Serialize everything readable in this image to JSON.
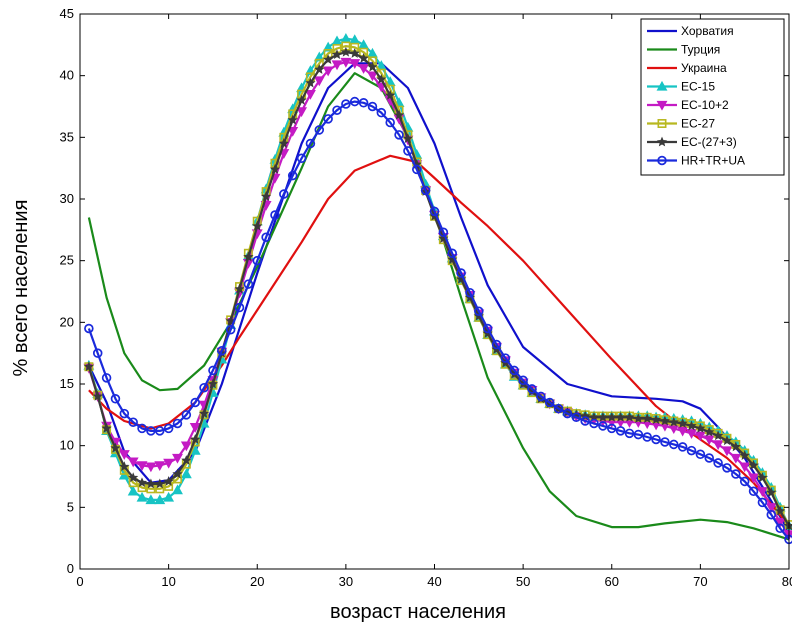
{
  "chart_data": {
    "type": "line",
    "title": "",
    "xlabel": "возраст населения",
    "ylabel": "% всего населения",
    "xlim": [
      0,
      80
    ],
    "ylim": [
      0,
      45
    ],
    "xticks": [
      0,
      10,
      20,
      30,
      40,
      50,
      60,
      70,
      80
    ],
    "yticks": [
      0,
      5,
      10,
      15,
      20,
      25,
      30,
      35,
      40,
      45
    ],
    "grid": false,
    "legend_position": "top-right",
    "series": [
      {
        "name": "Хорватия",
        "color": "#1010cc",
        "marker": "none",
        "x": [
          1,
          3,
          5,
          8,
          10,
          13,
          16,
          20,
          25,
          28,
          31,
          34,
          37,
          40,
          43,
          46,
          50,
          55,
          60,
          65,
          68,
          70,
          72,
          75,
          78,
          80
        ],
        "y": [
          16.5,
          13.5,
          9.5,
          7.0,
          7.2,
          9.5,
          15.0,
          24.0,
          34.5,
          39.0,
          41.0,
          41.0,
          39.0,
          34.5,
          28.5,
          23.0,
          18.0,
          15.0,
          14.0,
          13.8,
          13.6,
          13.0,
          11.5,
          9.0,
          5.5,
          3.0
        ]
      },
      {
        "name": "Турция",
        "color": "#1a8a1a",
        "marker": "none",
        "x": [
          1,
          3,
          5,
          7,
          9,
          11,
          14,
          17,
          20,
          25,
          28,
          31,
          34,
          37,
          40,
          43,
          46,
          50,
          53,
          56,
          60,
          63,
          66,
          70,
          73,
          76,
          80
        ],
        "y": [
          28.5,
          22.0,
          17.5,
          15.3,
          14.5,
          14.6,
          16.5,
          20.0,
          24.5,
          32.5,
          37.5,
          40.2,
          39.0,
          35.0,
          29.0,
          22.0,
          15.5,
          9.8,
          6.3,
          4.3,
          3.4,
          3.4,
          3.7,
          4.0,
          3.8,
          3.3,
          2.4
        ]
      },
      {
        "name": "Украина",
        "color": "#e01010",
        "marker": "none",
        "x": [
          1,
          3,
          5,
          8,
          10,
          13,
          16,
          18,
          20,
          25,
          28,
          31,
          35,
          38,
          40,
          43,
          46,
          50,
          55,
          60,
          65,
          68,
          70,
          73,
          76,
          80
        ],
        "y": [
          14.5,
          13.0,
          12.0,
          11.4,
          11.8,
          13.5,
          16.5,
          18.8,
          21.0,
          26.5,
          30.0,
          32.3,
          33.5,
          33.0,
          31.7,
          29.7,
          27.8,
          25.0,
          21.0,
          17.0,
          13.2,
          11.5,
          10.5,
          9.0,
          7.0,
          3.5
        ]
      },
      {
        "name": "ЕС-15",
        "color": "#17c4c4",
        "marker": "triangle-up",
        "x": [
          1,
          2,
          3,
          4,
          5,
          6,
          7,
          8,
          9,
          10,
          11,
          12,
          13,
          14,
          15,
          16,
          17,
          18,
          19,
          20,
          21,
          22,
          23,
          24,
          25,
          26,
          27,
          28,
          29,
          30,
          31,
          32,
          33,
          34,
          35,
          36,
          37,
          38,
          39,
          40,
          41,
          42,
          43,
          44,
          45,
          46,
          47,
          48,
          49,
          50,
          51,
          52,
          53,
          54,
          55,
          56,
          57,
          58,
          59,
          60,
          61,
          62,
          63,
          64,
          65,
          66,
          67,
          68,
          69,
          70,
          71,
          72,
          73,
          74,
          75,
          76,
          77,
          78,
          79,
          80
        ],
        "y": [
          16.5,
          14.2,
          11.2,
          9.4,
          7.6,
          6.3,
          5.8,
          5.6,
          5.6,
          5.8,
          6.4,
          7.7,
          9.6,
          11.8,
          14.3,
          17.0,
          19.8,
          22.6,
          25.4,
          28.2,
          30.8,
          33.2,
          35.4,
          37.3,
          39.0,
          40.4,
          41.5,
          42.3,
          42.8,
          43.0,
          42.9,
          42.5,
          41.8,
          40.8,
          39.5,
          37.8,
          35.8,
          33.6,
          31.2,
          29.0,
          27.0,
          25.2,
          23.5,
          21.9,
          20.4,
          19.0,
          17.7,
          16.6,
          15.6,
          14.9,
          14.3,
          13.8,
          13.4,
          13.0,
          12.8,
          12.6,
          12.5,
          12.4,
          12.4,
          12.4,
          12.4,
          12.4,
          12.4,
          12.4,
          12.3,
          12.3,
          12.2,
          12.1,
          12.0,
          11.8,
          11.5,
          11.2,
          10.8,
          10.3,
          9.6,
          8.8,
          7.8,
          6.6,
          5.0,
          3.5
        ]
      },
      {
        "name": "ЕС-10+2",
        "color": "#c41bc4",
        "marker": "triangle-down",
        "x": [
          1,
          2,
          3,
          4,
          5,
          6,
          7,
          8,
          9,
          10,
          11,
          12,
          13,
          14,
          15,
          16,
          17,
          18,
          19,
          20,
          21,
          22,
          23,
          24,
          25,
          26,
          27,
          28,
          29,
          30,
          31,
          32,
          33,
          34,
          35,
          36,
          37,
          38,
          39,
          40,
          41,
          42,
          43,
          44,
          45,
          46,
          47,
          48,
          49,
          50,
          51,
          52,
          53,
          54,
          55,
          56,
          57,
          58,
          59,
          60,
          61,
          62,
          63,
          64,
          65,
          66,
          67,
          68,
          69,
          70,
          71,
          72,
          73,
          74,
          75,
          76,
          77,
          78,
          79,
          80
        ],
        "y": [
          16.3,
          14.0,
          11.6,
          10.3,
          9.3,
          8.7,
          8.4,
          8.3,
          8.4,
          8.6,
          9.0,
          10.0,
          11.5,
          13.3,
          15.3,
          17.6,
          20.0,
          22.4,
          24.8,
          27.2,
          29.5,
          31.7,
          33.7,
          35.5,
          37.1,
          38.5,
          39.6,
          40.4,
          40.9,
          41.1,
          41.0,
          40.6,
          40.0,
          39.1,
          38.0,
          36.5,
          34.8,
          32.8,
          30.7,
          28.7,
          26.9,
          25.2,
          23.7,
          22.2,
          20.7,
          19.3,
          18.0,
          16.9,
          15.9,
          15.1,
          14.5,
          13.9,
          13.4,
          13.0,
          12.7,
          12.4,
          12.2,
          12.1,
          12.0,
          11.9,
          11.9,
          11.9,
          11.9,
          11.8,
          11.7,
          11.6,
          11.4,
          11.2,
          11.0,
          10.8,
          10.5,
          10.1,
          9.6,
          9.0,
          8.3,
          7.4,
          6.3,
          5.0,
          3.8,
          2.8
        ]
      },
      {
        "name": "ЕС-27",
        "color": "#b8b820",
        "marker": "square",
        "x": [
          1,
          2,
          3,
          4,
          5,
          6,
          7,
          8,
          9,
          10,
          11,
          12,
          13,
          14,
          15,
          16,
          17,
          18,
          19,
          20,
          21,
          22,
          23,
          24,
          25,
          26,
          27,
          28,
          29,
          30,
          31,
          32,
          33,
          34,
          35,
          36,
          37,
          38,
          39,
          40,
          41,
          42,
          43,
          44,
          45,
          46,
          47,
          48,
          49,
          50,
          51,
          52,
          53,
          54,
          55,
          56,
          57,
          58,
          59,
          60,
          61,
          62,
          63,
          64,
          65,
          66,
          67,
          68,
          69,
          70,
          71,
          72,
          73,
          74,
          75,
          76,
          77,
          78,
          79,
          80
        ],
        "y": [
          16.4,
          14.1,
          11.3,
          9.7,
          8.0,
          7.0,
          6.6,
          6.5,
          6.5,
          6.7,
          7.3,
          8.5,
          10.3,
          12.5,
          14.9,
          17.5,
          20.2,
          22.9,
          25.6,
          28.2,
          30.6,
          32.9,
          35.0,
          36.9,
          38.5,
          39.9,
          41.0,
          41.8,
          42.2,
          42.4,
          42.3,
          41.9,
          41.2,
          40.2,
          38.9,
          37.2,
          35.2,
          33.0,
          30.7,
          28.6,
          26.7,
          25.0,
          23.4,
          21.9,
          20.4,
          19.0,
          17.7,
          16.6,
          15.7,
          14.9,
          14.3,
          13.8,
          13.4,
          13.0,
          12.8,
          12.6,
          12.5,
          12.4,
          12.4,
          12.4,
          12.4,
          12.4,
          12.3,
          12.3,
          12.2,
          12.1,
          12.0,
          11.9,
          11.8,
          11.6,
          11.3,
          11.0,
          10.6,
          10.1,
          9.4,
          8.6,
          7.6,
          6.4,
          4.8,
          3.6
        ]
      },
      {
        "name": "ЕС-(27+3)",
        "color": "#3a3a3a",
        "marker": "star",
        "x": [
          1,
          2,
          3,
          4,
          5,
          6,
          7,
          8,
          9,
          10,
          11,
          12,
          13,
          14,
          15,
          16,
          17,
          18,
          19,
          20,
          21,
          22,
          23,
          24,
          25,
          26,
          27,
          28,
          29,
          30,
          31,
          32,
          33,
          34,
          35,
          36,
          37,
          38,
          39,
          40,
          41,
          42,
          43,
          44,
          45,
          46,
          47,
          48,
          49,
          50,
          51,
          52,
          53,
          54,
          55,
          56,
          57,
          58,
          59,
          60,
          61,
          62,
          63,
          64,
          65,
          66,
          67,
          68,
          69,
          70,
          71,
          72,
          73,
          74,
          75,
          76,
          77,
          78,
          79,
          80
        ],
        "y": [
          16.4,
          14.0,
          11.4,
          9.8,
          8.3,
          7.4,
          7.0,
          6.9,
          6.9,
          7.1,
          7.7,
          8.8,
          10.5,
          12.6,
          15.0,
          17.5,
          20.1,
          22.7,
          25.3,
          27.8,
          30.2,
          32.4,
          34.5,
          36.4,
          38.0,
          39.4,
          40.5,
          41.3,
          41.7,
          41.9,
          41.8,
          41.4,
          40.7,
          39.7,
          38.4,
          36.8,
          34.9,
          32.8,
          30.6,
          28.6,
          26.8,
          25.1,
          23.5,
          22.0,
          20.5,
          19.1,
          17.8,
          16.7,
          15.8,
          15.0,
          14.4,
          13.8,
          13.4,
          13.0,
          12.7,
          12.5,
          12.4,
          12.3,
          12.3,
          12.3,
          12.3,
          12.3,
          12.2,
          12.2,
          12.1,
          12.0,
          11.9,
          11.8,
          11.6,
          11.4,
          11.1,
          10.8,
          10.4,
          9.9,
          9.2,
          8.4,
          7.4,
          6.2,
          4.7,
          3.5
        ]
      },
      {
        "name": "HR+TR+UA",
        "color": "#1a2adc",
        "marker": "circle",
        "x": [
          1,
          2,
          3,
          4,
          5,
          6,
          7,
          8,
          9,
          10,
          11,
          12,
          13,
          14,
          15,
          16,
          17,
          18,
          19,
          20,
          21,
          22,
          23,
          24,
          25,
          26,
          27,
          28,
          29,
          30,
          31,
          32,
          33,
          34,
          35,
          36,
          37,
          38,
          39,
          40,
          41,
          42,
          43,
          44,
          45,
          46,
          47,
          48,
          49,
          50,
          51,
          52,
          53,
          54,
          55,
          56,
          57,
          58,
          59,
          60,
          61,
          62,
          63,
          64,
          65,
          66,
          67,
          68,
          69,
          70,
          71,
          72,
          73,
          74,
          75,
          76,
          77,
          78,
          79,
          80
        ],
        "y": [
          19.5,
          17.5,
          15.5,
          13.8,
          12.6,
          11.9,
          11.4,
          11.2,
          11.2,
          11.4,
          11.8,
          12.5,
          13.5,
          14.7,
          16.1,
          17.7,
          19.4,
          21.2,
          23.1,
          25.0,
          26.9,
          28.7,
          30.4,
          31.9,
          33.3,
          34.5,
          35.6,
          36.5,
          37.2,
          37.7,
          37.9,
          37.8,
          37.5,
          37.0,
          36.2,
          35.2,
          33.9,
          32.4,
          30.7,
          29.0,
          27.3,
          25.6,
          24.0,
          22.4,
          20.9,
          19.5,
          18.2,
          17.1,
          16.1,
          15.3,
          14.6,
          14.0,
          13.5,
          13.0,
          12.6,
          12.3,
          12.0,
          11.8,
          11.6,
          11.4,
          11.2,
          11.0,
          10.9,
          10.7,
          10.5,
          10.3,
          10.1,
          9.9,
          9.6,
          9.3,
          9.0,
          8.6,
          8.2,
          7.7,
          7.1,
          6.3,
          5.4,
          4.4,
          3.3,
          2.4
        ]
      }
    ]
  }
}
